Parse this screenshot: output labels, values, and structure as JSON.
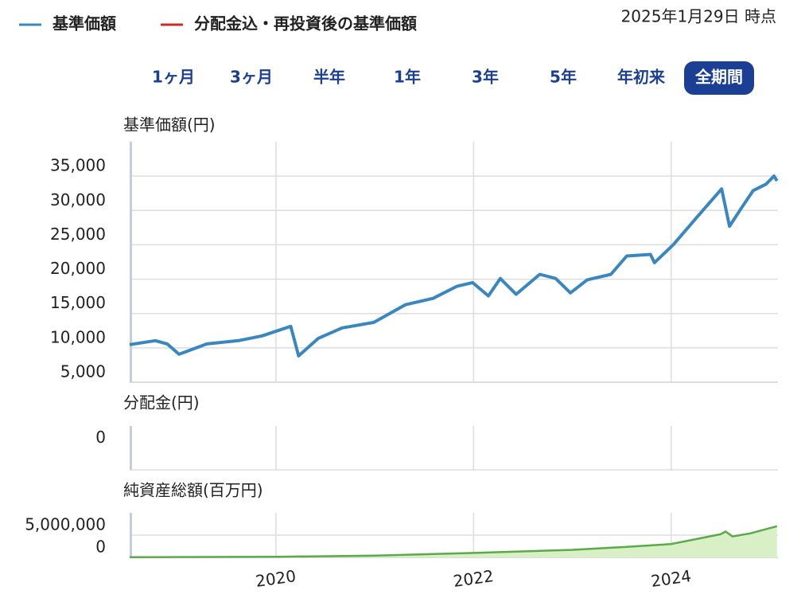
{
  "legend": [
    {
      "name": "基準価額",
      "color": "#3a87c0"
    },
    {
      "name": "分配金込・再投資後の基準価額",
      "color": "#cc2a2a"
    }
  ],
  "as_of": "2025年1月29日 時点",
  "periods": [
    {
      "label": "1ヶ月",
      "active": false
    },
    {
      "label": "3ヶ月",
      "active": false
    },
    {
      "label": "半年",
      "active": false
    },
    {
      "label": "1年",
      "active": false
    },
    {
      "label": "3年",
      "active": false
    },
    {
      "label": "5年",
      "active": false
    },
    {
      "label": "年初来",
      "active": false
    },
    {
      "label": "全期間",
      "active": true
    }
  ],
  "x_axis": {
    "xlim": [
      2018.52,
      2025.08
    ],
    "xticks": [
      2020,
      2022,
      2024
    ],
    "grid": true
  },
  "chart_data": [
    {
      "type": "line",
      "y_label": "基準価額(円)",
      "x": [
        2018.52,
        2018.78,
        2018.9,
        2019.02,
        2019.3,
        2019.62,
        2019.86,
        2020.15,
        2020.23,
        2020.43,
        2020.67,
        2020.99,
        2021.31,
        2021.59,
        2021.83,
        2021.99,
        2022.15,
        2022.27,
        2022.43,
        2022.67,
        2022.83,
        2022.98,
        2023.15,
        2023.39,
        2023.55,
        2023.79,
        2023.83,
        2024.02,
        2024.27,
        2024.51,
        2024.59,
        2024.71,
        2024.83,
        2024.96,
        2025.04,
        2025.07
      ],
      "series": [
        {
          "name": "基準価額",
          "color": "#3a87c0",
          "values": [
            10470,
            11050,
            10580,
            9070,
            10580,
            11050,
            11740,
            13140,
            8840,
            11400,
            12900,
            13700,
            16280,
            17200,
            18950,
            19500,
            17560,
            20100,
            17800,
            20700,
            20100,
            18000,
            19900,
            20700,
            23370,
            23600,
            22400,
            25000,
            29190,
            33140,
            27700,
            30350,
            32900,
            33840,
            35000,
            34300
          ]
        }
      ],
      "ylim": [
        5000,
        40000
      ],
      "yticks": [
        {
          "value": 5000,
          "label": "5,000"
        },
        {
          "value": 10000,
          "label": "10,000"
        },
        {
          "value": 15000,
          "label": "15,000"
        },
        {
          "value": 20000,
          "label": "20,000"
        },
        {
          "value": 25000,
          "label": "25,000"
        },
        {
          "value": 30000,
          "label": "30,000"
        },
        {
          "value": 35000,
          "label": "35,000"
        }
      ],
      "grid": true
    },
    {
      "type": "line",
      "y_label": "分配金(円)",
      "x": [],
      "series": [],
      "ylim": [
        -1,
        1
      ],
      "yticks": [
        0
      ],
      "grid": false
    },
    {
      "type": "area",
      "y_label": "純資産総額(百万円)",
      "x": [
        2018.52,
        2020,
        2021,
        2022,
        2023,
        2023.5,
        2024,
        2024.5,
        2024.55,
        2024.62,
        2024.8,
        2025.07
      ],
      "series": [
        {
          "name": "純資産総額",
          "color": "#5aaa4a",
          "fill": "#d9efc6",
          "values": [
            50000,
            150000,
            400000,
            1000000,
            1700000,
            2300000,
            3000000,
            5200000,
            5800000,
            4700000,
            5400000,
            7000000
          ]
        }
      ],
      "ylim": [
        0,
        10000000
      ],
      "yticks": [
        0,
        {
          "value": 5000000,
          "label": "5,000,000"
        }
      ],
      "grid": true
    }
  ]
}
